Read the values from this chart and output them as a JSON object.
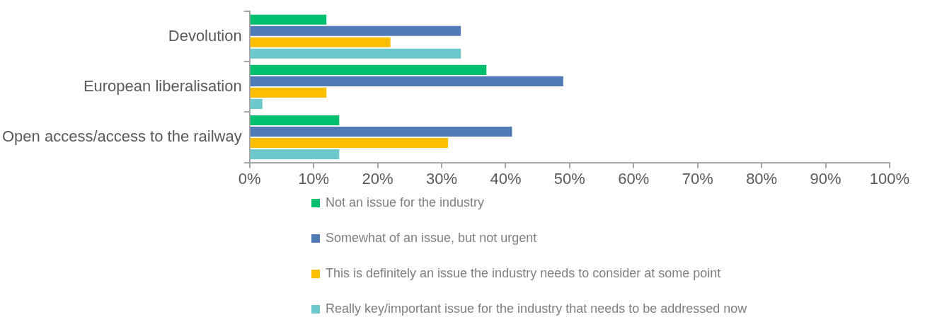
{
  "chart_data": {
    "type": "bar",
    "orientation": "horizontal",
    "categories": [
      "Devolution",
      "European liberalisation",
      "Open access/access to the railway"
    ],
    "series": [
      {
        "name": "Not an issue for the industry",
        "color": "#00c070",
        "values": [
          12,
          37,
          14
        ]
      },
      {
        "name": "Somewhat of an issue, but not urgent",
        "color": "#4f7ab5",
        "values": [
          33,
          49,
          41
        ]
      },
      {
        "name": "This is definitely an issue the industry needs to consider at some point",
        "color": "#fbbd00",
        "values": [
          22,
          12,
          31
        ]
      },
      {
        "name": "Really key/important issue for the industry that needs to be addressed now",
        "color": "#6cc8cb",
        "values": [
          33,
          2,
          14
        ]
      }
    ],
    "xlim": [
      0,
      100
    ],
    "xticks": [
      {
        "value": 0,
        "label": "0%"
      },
      {
        "value": 10,
        "label": "10%"
      },
      {
        "value": 20,
        "label": "20%"
      },
      {
        "value": 30,
        "label": "30%"
      },
      {
        "value": 40,
        "label": "40%"
      },
      {
        "value": 50,
        "label": "50%"
      },
      {
        "value": 60,
        "label": "60%"
      },
      {
        "value": 70,
        "label": "70%"
      },
      {
        "value": 80,
        "label": "80%"
      },
      {
        "value": 90,
        "label": "90%"
      },
      {
        "value": 100,
        "label": "100%"
      }
    ],
    "grid": false,
    "legend": "bottom"
  }
}
